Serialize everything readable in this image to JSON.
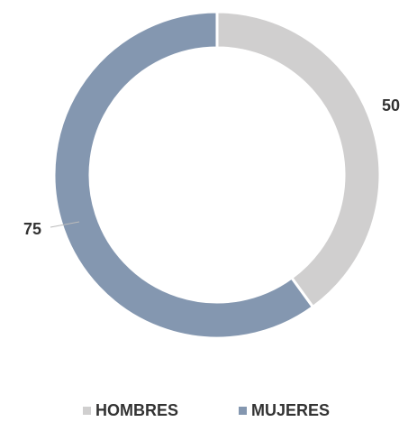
{
  "chart_data": {
    "type": "donut",
    "categories": [
      "HOMBRES",
      "MUJERES"
    ],
    "values": [
      50,
      75
    ],
    "colors": [
      "#d0cfcf",
      "#8497b0"
    ],
    "legend": "bottom"
  }
}
